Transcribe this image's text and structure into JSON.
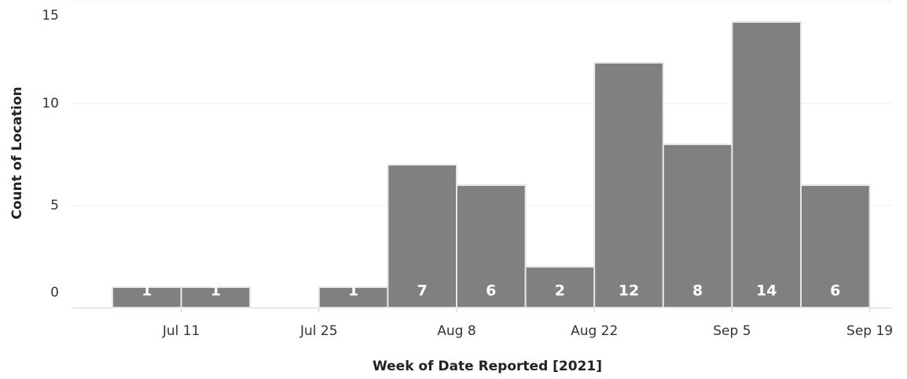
{
  "chart_data": {
    "type": "bar",
    "x_label": "Week of Date Reported [2021]",
    "y_label": "Count of Location",
    "categories": [
      null,
      "Jul 11",
      null,
      "Jul 25",
      null,
      "Aug 8",
      null,
      "Aug 22",
      null,
      "Sep 5",
      null,
      "Sep 19"
    ],
    "values": [
      1,
      1,
      null,
      1,
      7,
      6,
      2,
      12,
      8,
      14,
      6,
      null
    ],
    "value_labels": [
      "1",
      "1",
      null,
      "1",
      "7",
      "6",
      "2",
      "12",
      "8",
      "14",
      "6",
      null
    ],
    "color": "#808080",
    "ylim": [
      0,
      15
    ],
    "yticks": [
      0,
      5,
      10,
      15
    ],
    "grid": true
  }
}
